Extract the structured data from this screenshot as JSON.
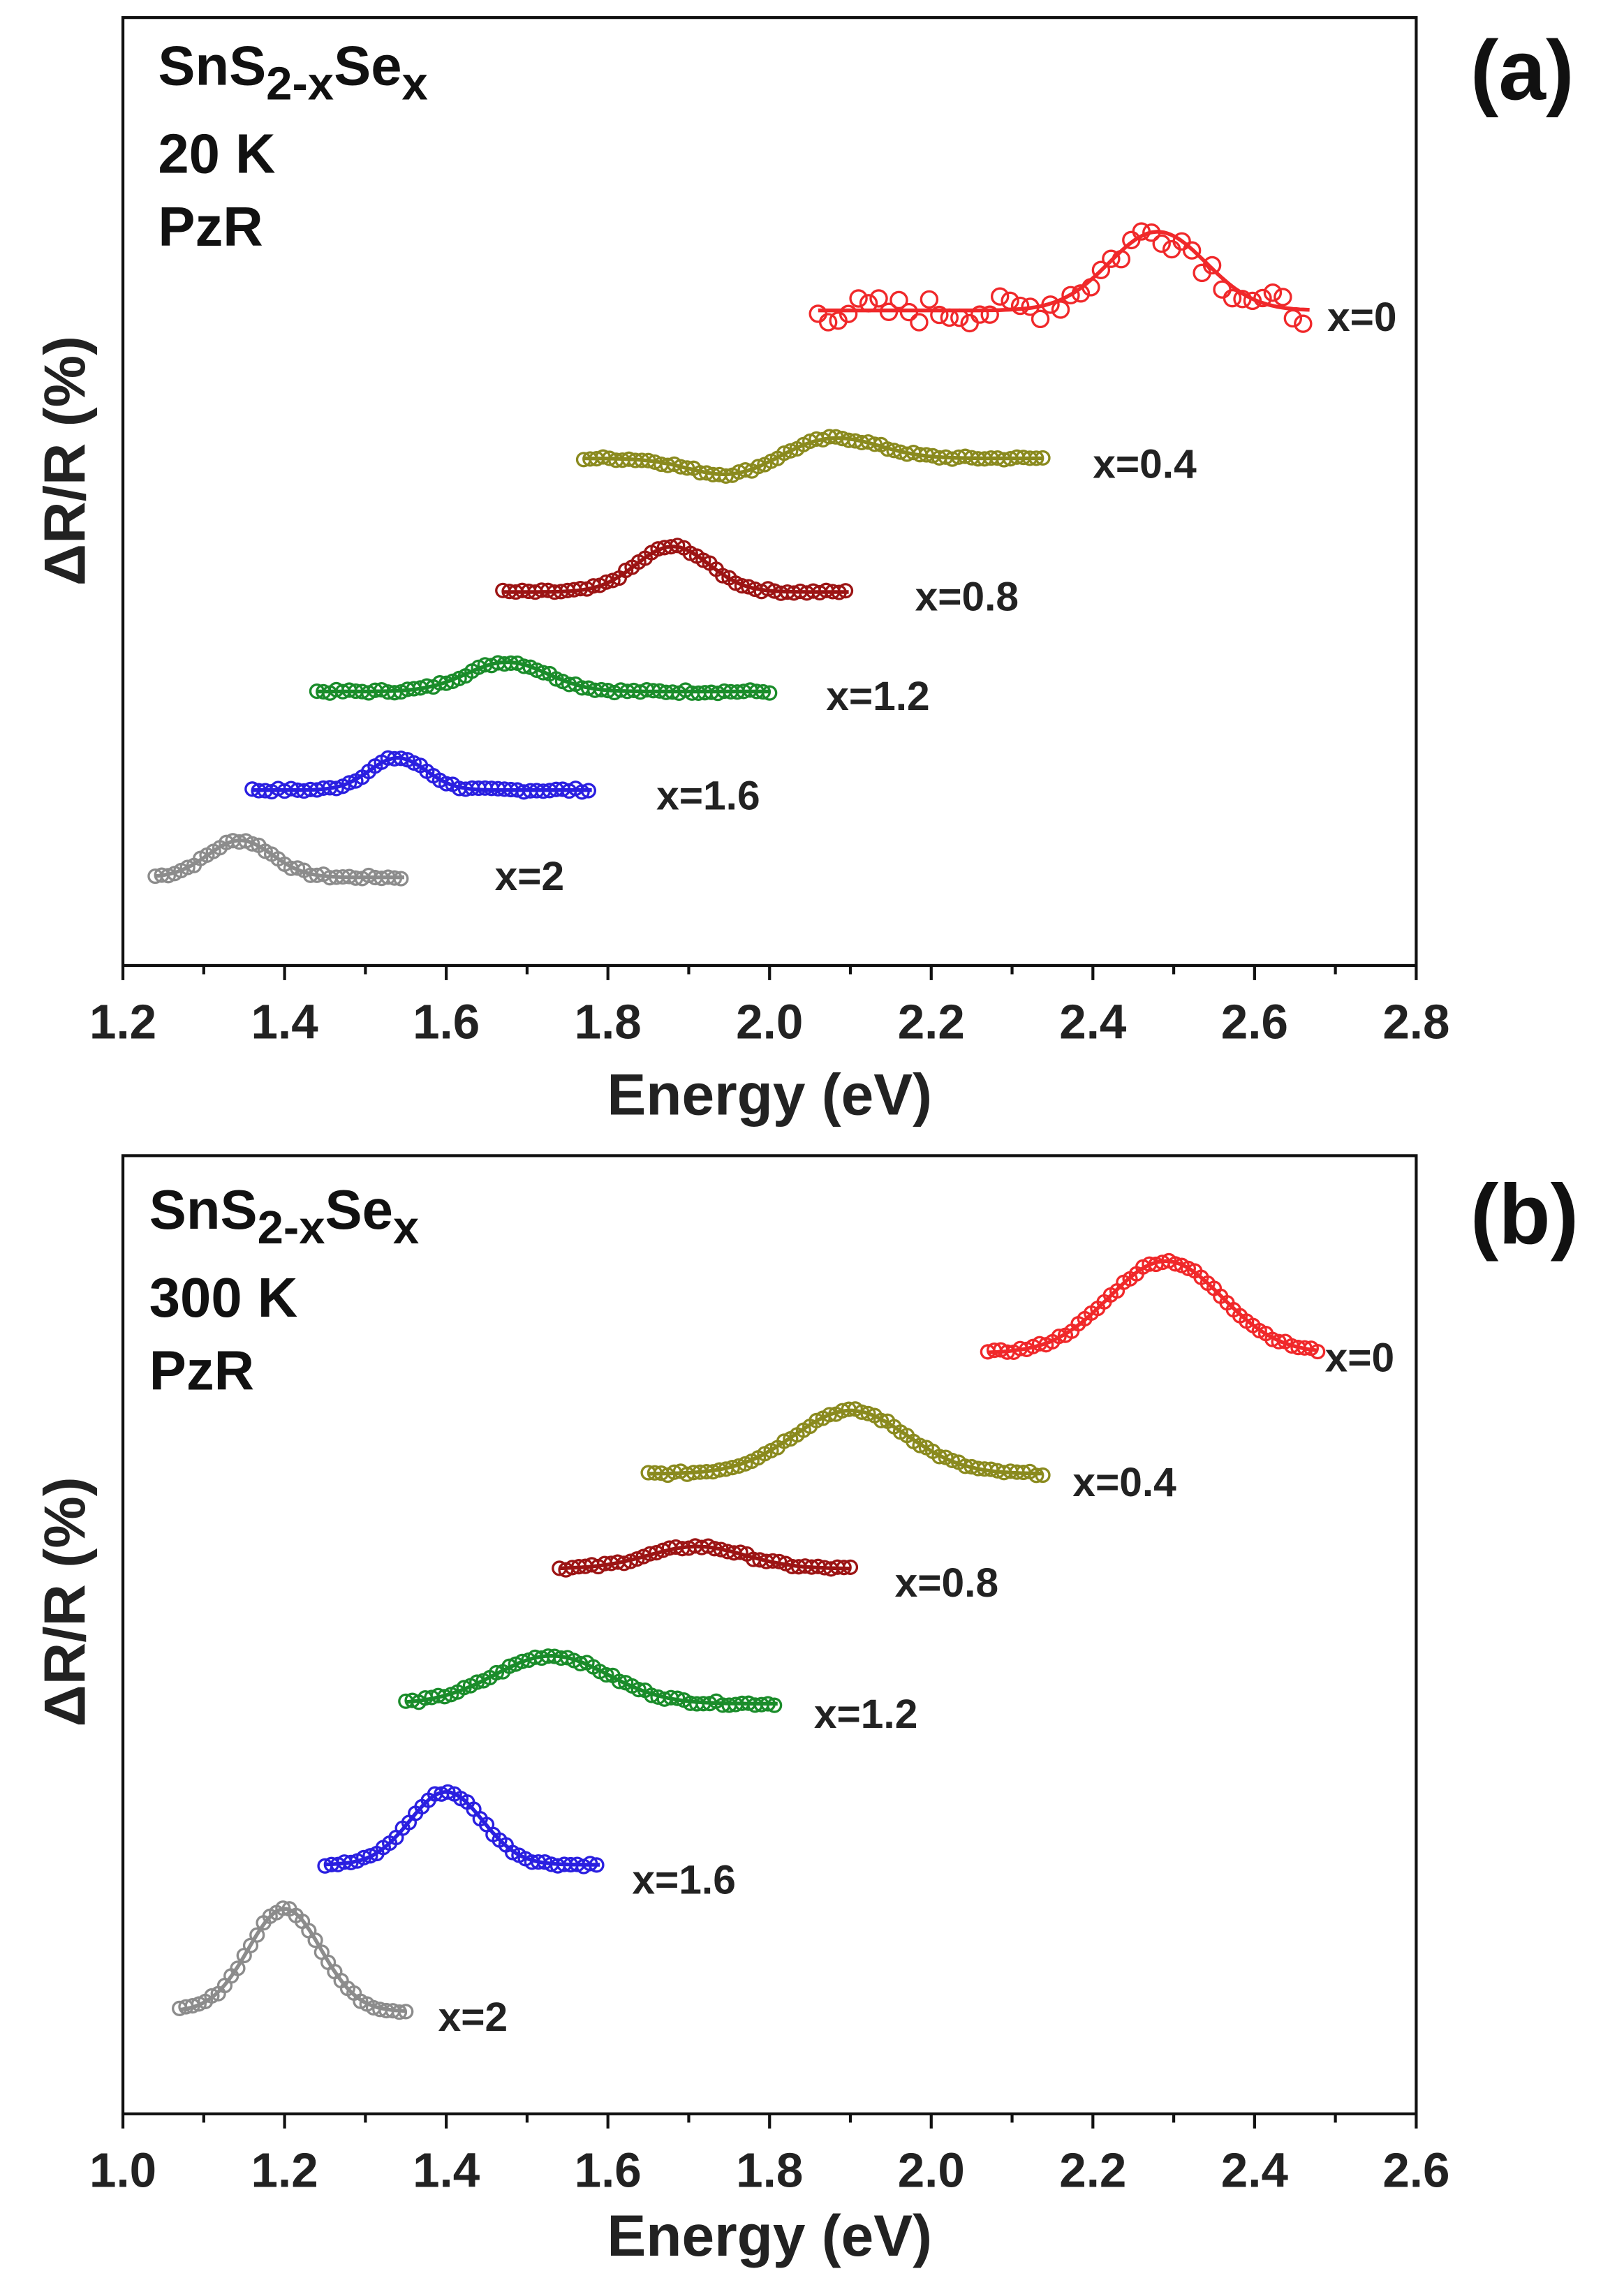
{
  "chart_data": [
    {
      "type": "line",
      "panel_label": "(a)",
      "annotation": {
        "formula_base": "SnS",
        "formula_sub1": "2-x",
        "formula_mid": "Se",
        "formula_sub2": "x",
        "temperature": "20 K",
        "method": "PzR"
      },
      "xlabel": "Energy (eV)",
      "ylabel": "ΔR/R (%)",
      "xlim": [
        1.2,
        2.8
      ],
      "ylim": [
        0,
        10
      ],
      "xticks": [
        "1.2",
        "1.4",
        "1.6",
        "1.8",
        "2.0",
        "2.2",
        "2.4",
        "2.6",
        "2.8"
      ],
      "y_units": "arbitrary (stacked, offset)",
      "series": [
        {
          "name": "x=2",
          "color": "#8c8c8c",
          "x_range": [
            1.24,
            1.55
          ],
          "offset": 0.93,
          "peak_center": 1.345,
          "peak_width": 0.04,
          "peak_amp": 0.39,
          "label_x": 1.66,
          "label_y": 0.95
        },
        {
          "name": "x=1.6",
          "color": "#2a1fe0",
          "x_range": [
            1.36,
            1.78
          ],
          "offset": 1.85,
          "peak_center": 1.54,
          "peak_width": 0.035,
          "peak_amp": 0.34,
          "label_x": 1.86,
          "label_y": 1.8
        },
        {
          "name": "x=1.2",
          "color": "#1a8c2a",
          "x_range": [
            1.44,
            2.0
          ],
          "offset": 2.89,
          "peak_center": 1.675,
          "peak_width": 0.05,
          "peak_amp": 0.31,
          "label_x": 2.07,
          "label_y": 2.85
        },
        {
          "name": "x=0.8",
          "color": "#9c1414",
          "x_range": [
            1.67,
            2.1
          ],
          "offset": 3.94,
          "peak_center": 1.88,
          "peak_width": 0.045,
          "peak_amp": 0.48,
          "label_x": 2.18,
          "label_y": 3.9
        },
        {
          "name": "x=0.4",
          "color": "#8a8a1e",
          "x_range": [
            1.77,
            2.34
          ],
          "offset": 5.35,
          "peak_center": 2.08,
          "peak_width": 0.055,
          "peak_amp": 0.22,
          "dip_center": 1.95,
          "dip_width": 0.05,
          "dip_amp": 0.18,
          "label_x": 2.4,
          "label_y": 5.3
        },
        {
          "name": "x=0",
          "color": "#f0282a",
          "x_range": [
            2.06,
            2.67
          ],
          "offset": 6.91,
          "peak_center": 2.48,
          "peak_width": 0.06,
          "peak_amp": 0.83,
          "noise": 0.15,
          "label_x": 2.69,
          "label_y": 6.85
        }
      ]
    },
    {
      "type": "line",
      "panel_label": "(b)",
      "annotation": {
        "formula_base": "SnS",
        "formula_sub1": "2-x",
        "formula_mid": "Se",
        "formula_sub2": "x",
        "temperature": "300 K",
        "method": "PzR"
      },
      "xlabel": "Energy (eV)",
      "ylabel": "ΔR/R (%)",
      "xlim": [
        1.0,
        2.6
      ],
      "ylim": [
        0,
        10
      ],
      "xticks": [
        "1.0",
        "1.2",
        "1.4",
        "1.6",
        "1.8",
        "2.0",
        "2.2",
        "2.4",
        "2.6"
      ],
      "y_units": "arbitrary (stacked, offset)",
      "series": [
        {
          "name": "x=2",
          "color": "#8c8c8c",
          "x_range": [
            1.07,
            1.35
          ],
          "offset": 1.07,
          "peak_center": 1.2,
          "peak_width": 0.045,
          "peak_amp": 1.07,
          "label_x": 1.39,
          "label_y": 1.02
        },
        {
          "name": "x=1.6",
          "color": "#2a1fe0",
          "x_range": [
            1.25,
            1.59
          ],
          "offset": 2.6,
          "peak_center": 1.4,
          "peak_width": 0.045,
          "peak_amp": 0.76,
          "label_x": 1.63,
          "label_y": 2.45
        },
        {
          "name": "x=1.2",
          "color": "#1a8c2a",
          "x_range": [
            1.35,
            1.81
          ],
          "offset": 4.28,
          "peak_center": 1.53,
          "peak_width": 0.07,
          "peak_amp": 0.5,
          "label_x": 1.855,
          "label_y": 4.18
        },
        {
          "name": "x=0.8",
          "color": "#9c1414",
          "x_range": [
            1.54,
            1.9
          ],
          "offset": 5.69,
          "peak_center": 1.71,
          "peak_width": 0.06,
          "peak_amp": 0.23,
          "label_x": 1.955,
          "label_y": 5.55
        },
        {
          "name": "x=0.4",
          "color": "#8a8a1e",
          "x_range": [
            1.65,
            2.14
          ],
          "offset": 6.68,
          "peak_center": 1.9,
          "peak_width": 0.07,
          "peak_amp": 0.66,
          "label_x": 2.175,
          "label_y": 6.6
        },
        {
          "name": "x=0",
          "color": "#f0282a",
          "x_range": [
            2.07,
            2.48
          ],
          "offset": 7.94,
          "peak_center": 2.29,
          "peak_width": 0.07,
          "peak_amp": 0.96,
          "label_x": 2.487,
          "label_y": 7.9
        }
      ]
    }
  ]
}
